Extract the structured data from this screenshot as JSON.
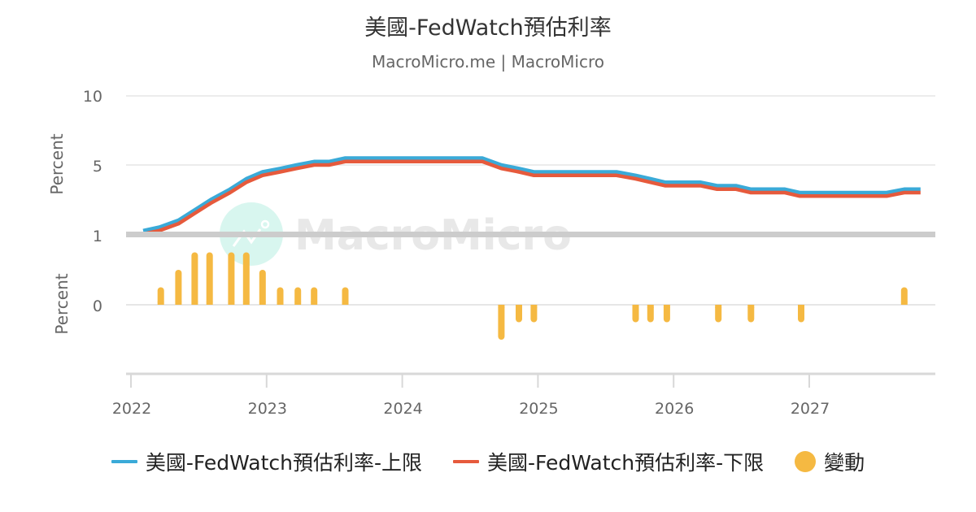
{
  "header": {
    "title": "美國-FedWatch預估利率",
    "subtitle": "MacroMicro.me | MacroMicro"
  },
  "watermark": "MacroMicro",
  "colors": {
    "upper": "#3AAAD8",
    "lower": "#E65A3C",
    "change": "#F5B942",
    "grid": "#E6E6E6",
    "divider": "#CCCCCC",
    "axis_text": "#666666"
  },
  "legend": [
    {
      "label": "美國-FedWatch預估利率-上限",
      "type": "line",
      "color": "#3AAAD8"
    },
    {
      "label": "美國-FedWatch預估利率-下限",
      "type": "line",
      "color": "#E65A3C"
    },
    {
      "label": "變動",
      "type": "dot",
      "color": "#F5B942"
    }
  ],
  "chart_data": [
    {
      "type": "line",
      "title": "美國-FedWatch預估利率",
      "subtitle": "MacroMicro.me | MacroMicro",
      "xlabel": "",
      "ylabel": "Percent",
      "ylim": [
        0,
        10
      ],
      "yticks": [
        5,
        10
      ],
      "xticks": [
        "2022",
        "2023",
        "2024",
        "2025",
        "2026",
        "2027"
      ],
      "grid": true,
      "legend_position": "bottom",
      "x": [
        2022.09,
        2022.21,
        2022.35,
        2022.47,
        2022.59,
        2022.73,
        2022.85,
        2022.97,
        2023.1,
        2023.22,
        2023.35,
        2023.46,
        2023.58,
        2024.59,
        2024.73,
        2024.86,
        2024.97,
        2025.58,
        2025.72,
        2025.83,
        2025.94,
        2026.2,
        2026.32,
        2026.46,
        2026.57,
        2026.82,
        2026.93,
        2027.57,
        2027.7,
        2027.82
      ],
      "series": [
        {
          "name": "美國-FedWatch預估利率-上限",
          "values": [
            0.25,
            0.5,
            1.0,
            1.75,
            2.5,
            3.25,
            4.0,
            4.5,
            4.75,
            5.0,
            5.25,
            5.25,
            5.5,
            5.5,
            5.0,
            4.75,
            4.5,
            4.5,
            4.25,
            4.0,
            3.75,
            3.75,
            3.5,
            3.5,
            3.25,
            3.25,
            3.0,
            3.0,
            3.25,
            3.25
          ]
        },
        {
          "name": "美國-FedWatch預估利率-下限",
          "values": [
            0.0,
            0.25,
            0.75,
            1.5,
            2.25,
            3.0,
            3.75,
            4.25,
            4.5,
            4.75,
            5.0,
            5.0,
            5.25,
            5.25,
            4.75,
            4.5,
            4.25,
            4.25,
            4.0,
            3.75,
            3.5,
            3.5,
            3.25,
            3.25,
            3.0,
            3.0,
            2.75,
            2.75,
            3.0,
            3.0
          ]
        }
      ]
    },
    {
      "type": "bar",
      "title": "變動",
      "ylabel": "Percent",
      "ylim": [
        -1,
        1
      ],
      "yticks": [
        0,
        1
      ],
      "x": [
        2022.22,
        2022.35,
        2022.47,
        2022.58,
        2022.74,
        2022.85,
        2022.97,
        2023.1,
        2023.23,
        2023.35,
        2023.58,
        2024.73,
        2024.86,
        2024.97,
        2025.72,
        2025.83,
        2025.95,
        2026.33,
        2026.57,
        2026.94,
        2027.7
      ],
      "series": [
        {
          "name": "變動",
          "values": [
            0.25,
            0.5,
            0.75,
            0.75,
            0.75,
            0.75,
            0.5,
            0.25,
            0.25,
            0.25,
            0.25,
            -0.5,
            -0.25,
            -0.25,
            -0.25,
            -0.25,
            -0.25,
            -0.25,
            -0.25,
            -0.25,
            0.25
          ]
        }
      ]
    }
  ]
}
